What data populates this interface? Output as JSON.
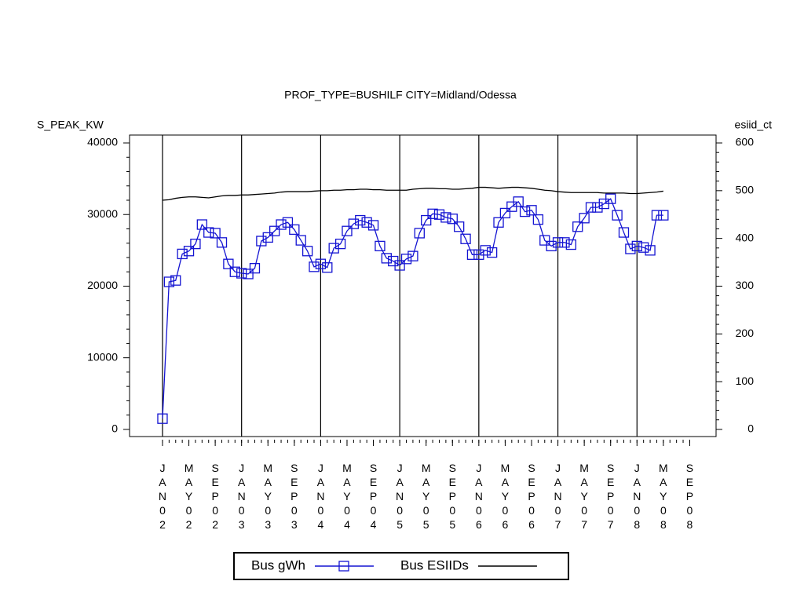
{
  "chart_data": {
    "type": "line",
    "title": "PROF_TYPE=BUSHILF CITY=Midland/Odessa",
    "y_label": "S_PEAK_KW",
    "y2_label": "esiid_ct",
    "x": [
      "2002-01",
      "2002-02",
      "2002-03",
      "2002-04",
      "2002-05",
      "2002-06",
      "2002-07",
      "2002-08",
      "2002-09",
      "2002-10",
      "2002-11",
      "2002-12",
      "2003-01",
      "2003-02",
      "2003-03",
      "2003-04",
      "2003-05",
      "2003-06",
      "2003-07",
      "2003-08",
      "2003-09",
      "2003-10",
      "2003-11",
      "2003-12",
      "2004-01",
      "2004-02",
      "2004-03",
      "2004-04",
      "2004-05",
      "2004-06",
      "2004-07",
      "2004-08",
      "2004-09",
      "2004-10",
      "2004-11",
      "2004-12",
      "2005-01",
      "2005-02",
      "2005-03",
      "2005-04",
      "2005-05",
      "2005-06",
      "2005-07",
      "2005-08",
      "2005-09",
      "2005-10",
      "2005-11",
      "2005-12",
      "2006-01",
      "2006-02",
      "2006-03",
      "2006-04",
      "2006-05",
      "2006-06",
      "2006-07",
      "2006-08",
      "2006-09",
      "2006-10",
      "2006-11",
      "2006-12",
      "2007-01",
      "2007-02",
      "2007-03",
      "2007-04",
      "2007-05",
      "2007-06",
      "2007-07",
      "2007-08",
      "2007-09",
      "2007-10",
      "2007-11",
      "2007-12",
      "2008-01",
      "2008-02",
      "2008-03",
      "2008-04",
      "2008-05"
    ],
    "series": [
      {
        "name": "Bus gWh",
        "color": "#1414d2",
        "marker": "square",
        "axis": "y",
        "values": [
          1500,
          20600,
          20800,
          24500,
          24900,
          25900,
          28600,
          27500,
          27400,
          26100,
          23100,
          22000,
          21800,
          21700,
          22500,
          26300,
          26800,
          27700,
          28600,
          28900,
          27900,
          26400,
          24900,
          22700,
          23100,
          22600,
          25300,
          25900,
          27700,
          28700,
          29200,
          28900,
          28500,
          25600,
          23900,
          23500,
          22900,
          23800,
          24200,
          27400,
          29200,
          30100,
          30000,
          29600,
          29400,
          28300,
          26600,
          24400,
          24400,
          25000,
          24700,
          28900,
          30200,
          31100,
          31800,
          30400,
          30600,
          29300,
          26400,
          25600,
          26100,
          26100,
          25800,
          28300,
          29500,
          31000,
          31000,
          31500,
          32200,
          29900,
          27500,
          25200,
          25600,
          25400,
          25000,
          29900,
          29900
        ]
      },
      {
        "name": "Bus ESIIDs",
        "color": "#000000",
        "axis": "y2",
        "values": [
          480,
          481,
          484,
          486,
          487,
          487,
          486,
          485,
          487,
          489,
          490,
          490,
          491,
          491,
          492,
          493,
          494,
          495,
          497,
          498,
          498,
          498,
          498,
          499,
          500,
          500,
          501,
          501,
          502,
          502,
          503,
          503,
          502,
          502,
          501,
          501,
          501,
          501,
          503,
          504,
          505,
          505,
          504,
          504,
          503,
          503,
          504,
          505,
          507,
          507,
          506,
          505,
          506,
          507,
          507,
          506,
          505,
          503,
          501,
          500,
          498,
          497,
          496,
          496,
          496,
          496,
          496,
          495,
          495,
          495,
          495,
          494,
          494,
          495,
          496,
          497,
          499
        ]
      }
    ],
    "xlim": [
      "2001-08",
      "2009-01"
    ],
    "xticks": [
      {
        "value": "2002-01",
        "label": "JAN02"
      },
      {
        "value": "2002-05",
        "label": "MAY02"
      },
      {
        "value": "2002-09",
        "label": "SEP02"
      },
      {
        "value": "2003-01",
        "label": "JAN03"
      },
      {
        "value": "2003-05",
        "label": "MAY03"
      },
      {
        "value": "2003-09",
        "label": "SEP03"
      },
      {
        "value": "2004-01",
        "label": "JAN04"
      },
      {
        "value": "2004-05",
        "label": "MAY04"
      },
      {
        "value": "2004-09",
        "label": "SEP04"
      },
      {
        "value": "2005-01",
        "label": "JAN05"
      },
      {
        "value": "2005-05",
        "label": "MAY05"
      },
      {
        "value": "2005-09",
        "label": "SEP05"
      },
      {
        "value": "2006-01",
        "label": "JAN06"
      },
      {
        "value": "2006-05",
        "label": "MAY06"
      },
      {
        "value": "2006-09",
        "label": "SEP06"
      },
      {
        "value": "2007-01",
        "label": "JAN07"
      },
      {
        "value": "2007-05",
        "label": "MAY07"
      },
      {
        "value": "2007-09",
        "label": "SEP07"
      },
      {
        "value": "2008-01",
        "label": "JAN08"
      },
      {
        "value": "2008-05",
        "label": "MAY08"
      },
      {
        "value": "2008-09",
        "label": "SEP08"
      }
    ],
    "x_reflines": [
      "2002-01",
      "2003-01",
      "2004-01",
      "2005-01",
      "2006-01",
      "2007-01",
      "2008-01"
    ],
    "ylim": [
      -1000,
      41100
    ],
    "yticks": [
      0,
      10000,
      20000,
      30000,
      40000
    ],
    "y2lim": [
      -15,
      616.5
    ],
    "y2ticks": [
      0,
      100,
      200,
      300,
      400,
      500,
      600
    ],
    "legend": "bottom"
  }
}
